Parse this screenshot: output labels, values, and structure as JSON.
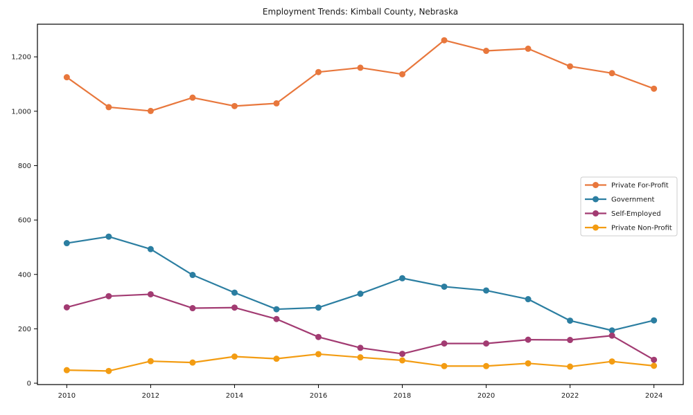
{
  "window": {
    "background": "#ffffff"
  },
  "chart_data": {
    "type": "line",
    "title": "Employment Trends: Kimball County, Nebraska",
    "xlabel": "",
    "ylabel": "",
    "x": [
      2010,
      2011,
      2012,
      2013,
      2014,
      2015,
      2016,
      2017,
      2018,
      2019,
      2020,
      2021,
      2022,
      2023,
      2024
    ],
    "series": [
      {
        "name": "Private For-Profit",
        "color": "#e8773c",
        "values": [
          1125,
          1015,
          1001,
          1050,
          1019,
          1029,
          1144,
          1160,
          1136,
          1261,
          1222,
          1230,
          1165,
          1140,
          1083
        ]
      },
      {
        "name": "Government",
        "color": "#2b7ea1",
        "values": [
          515,
          539,
          493,
          398,
          333,
          272,
          278,
          329,
          386,
          355,
          341,
          309,
          230,
          194,
          231
        ]
      },
      {
        "name": "Self-Employed",
        "color": "#a23b72",
        "values": [
          279,
          320,
          327,
          276,
          278,
          236,
          170,
          130,
          108,
          146,
          146,
          160,
          159,
          175,
          86
        ]
      },
      {
        "name": "Private Non-Profit",
        "color": "#f39c12",
        "values": [
          48,
          45,
          81,
          76,
          98,
          90,
          107,
          95,
          84,
          63,
          63,
          73,
          61,
          80,
          64
        ]
      }
    ],
    "xticks": [
      2010,
      2012,
      2014,
      2016,
      2018,
      2020,
      2022,
      2024
    ],
    "xtick_labels": [
      "2010",
      "2012",
      "2014",
      "2016",
      "2018",
      "2020",
      "2022",
      "2024"
    ],
    "yticks": [
      0,
      200,
      400,
      600,
      800,
      1000,
      1200
    ],
    "ytick_labels": [
      "0",
      "200",
      "400",
      "600",
      "800",
      "1,000",
      "1,200"
    ],
    "xlim": [
      2009.3,
      2024.7
    ],
    "ylim": [
      -5,
      1320
    ],
    "grid": false,
    "legend_position": "right-middle",
    "marker": "circle",
    "line_width": 2.2,
    "marker_radius": 4.5,
    "axis_color": "#000000",
    "legend_border_color": "#cccccc",
    "legend_background": "#ffffff"
  }
}
